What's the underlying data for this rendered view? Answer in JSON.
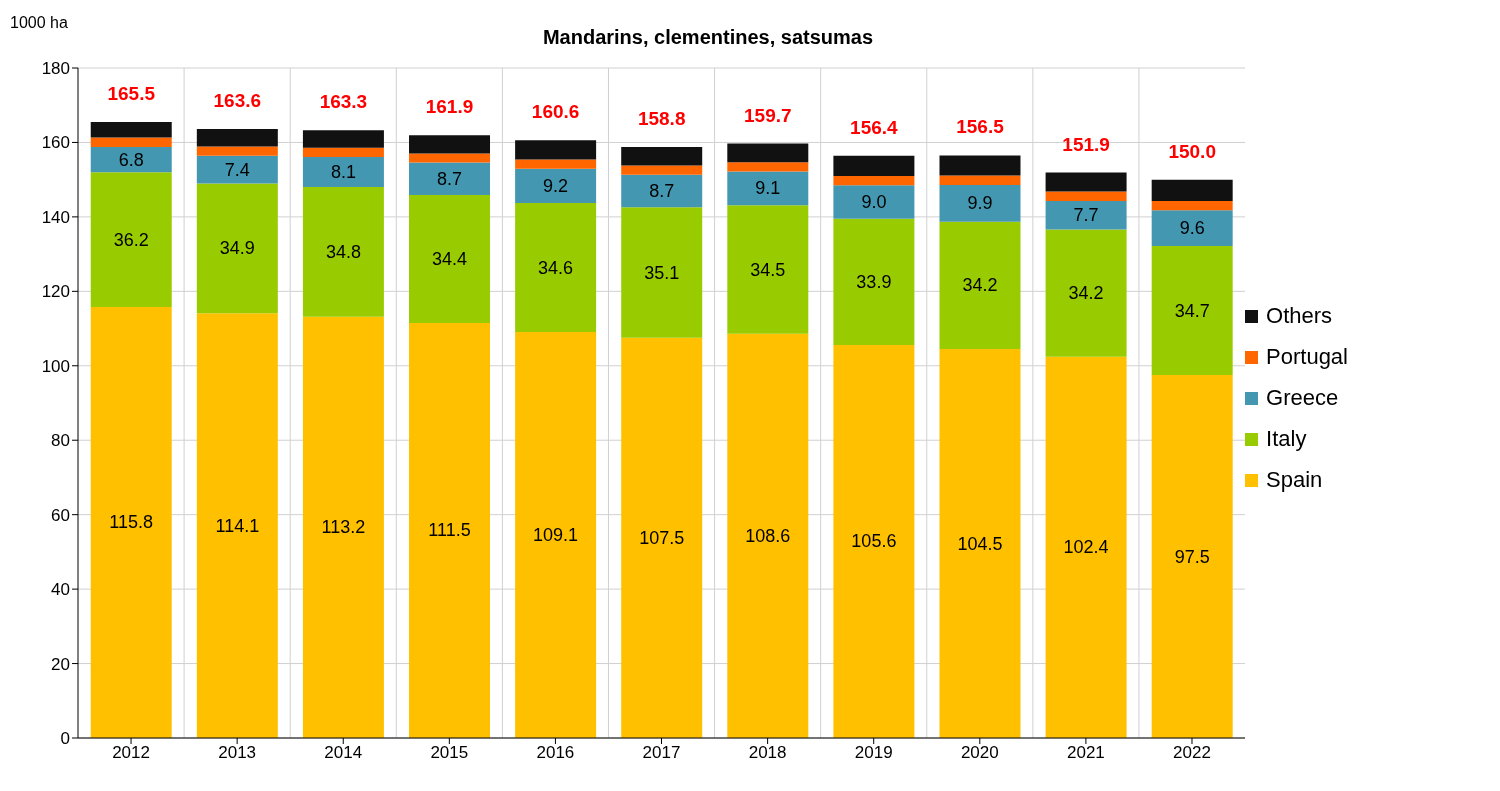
{
  "chart_data": {
    "type": "bar",
    "title": "Mandarins, clementines, satsumas",
    "ylabel": "1000 ha",
    "categories": [
      "2012",
      "2013",
      "2014",
      "2015",
      "2016",
      "2017",
      "2018",
      "2019",
      "2020",
      "2021",
      "2022"
    ],
    "stacked": true,
    "series": [
      {
        "name": "Spain",
        "color": "#ffc000",
        "values": [
          115.8,
          114.1,
          113.2,
          111.5,
          109.1,
          107.5,
          108.6,
          105.6,
          104.5,
          102.4,
          97.5
        ],
        "value_labels": [
          "115.8",
          "114.1",
          "113.2",
          "111.5",
          "109.1",
          "107.5",
          "108.6",
          "105.6",
          "104.5",
          "102.4",
          "97.5"
        ]
      },
      {
        "name": "Italy",
        "color": "#99cc00",
        "values": [
          36.2,
          34.9,
          34.8,
          34.4,
          34.6,
          35.1,
          34.5,
          33.9,
          34.2,
          34.2,
          34.7
        ],
        "value_labels": [
          "36.2",
          "34.9",
          "34.8",
          "34.4",
          "34.6",
          "35.1",
          "34.5",
          "33.9",
          "34.2",
          "34.2",
          "34.7"
        ]
      },
      {
        "name": "Greece",
        "color": "#4397b0",
        "values": [
          6.8,
          7.4,
          8.1,
          8.7,
          9.2,
          8.7,
          9.1,
          9.0,
          9.9,
          7.7,
          9.6
        ],
        "value_labels": [
          "6.8",
          "7.4",
          "8.1",
          "8.7",
          "9.2",
          "8.7",
          "9.1",
          "9.0",
          "9.9",
          "7.7",
          "9.6"
        ]
      },
      {
        "name": "Portugal",
        "color": "#ff6600",
        "values": [
          2.5,
          2.5,
          2.5,
          2.4,
          2.5,
          2.5,
          2.5,
          2.5,
          2.5,
          2.5,
          2.5
        ]
      },
      {
        "name": "Others",
        "color": "#111111",
        "values": [
          4.2,
          4.7,
          4.7,
          4.9,
          5.2,
          5.0,
          5.0,
          5.4,
          5.4,
          5.1,
          5.7
        ]
      }
    ],
    "totals": [
      "165.5",
      "163.6",
      "163.3",
      "161.9",
      "160.6",
      "158.8",
      "159.7",
      "156.4",
      "156.5",
      "151.9",
      "150.0"
    ],
    "ylim": [
      0,
      180
    ],
    "yticks": [
      0,
      20,
      40,
      60,
      80,
      100,
      120,
      140,
      160,
      180
    ],
    "grid": true,
    "legend": "right"
  }
}
